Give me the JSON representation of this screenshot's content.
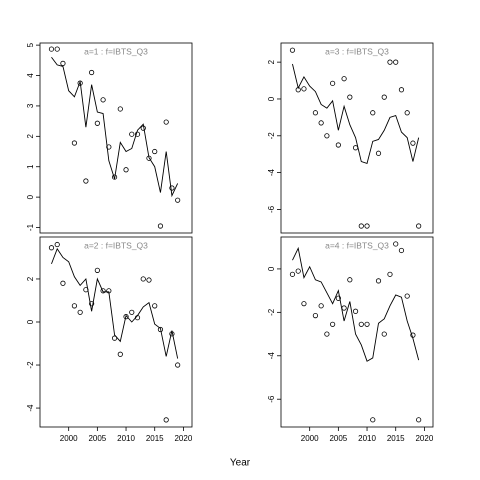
{
  "xlabel": "Year",
  "chart_data": [
    {
      "type": "line",
      "title": "a=1  :  f=IBTS_Q3",
      "x": [
        1997,
        1998,
        1999,
        2000,
        2001,
        2002,
        2003,
        2004,
        2005,
        2006,
        2007,
        2008,
        2009,
        2010,
        2011,
        2012,
        2013,
        2014,
        2015,
        2016,
        2017,
        2018,
        2019
      ],
      "series": [
        {
          "mode": "points",
          "color": "#000000",
          "values": [
            4.87,
            4.87,
            4.4,
            null,
            1.78,
            3.75,
            0.53,
            4.1,
            2.43,
            3.2,
            1.65,
            0.66,
            2.9,
            0.9,
            2.07,
            2.07,
            2.27,
            1.28,
            1.5,
            -0.95,
            2.47,
            0.3,
            -0.1
          ]
        },
        {
          "mode": "lines",
          "color": "#000000",
          "values": [
            4.6,
            4.35,
            4.3,
            3.5,
            3.3,
            3.8,
            2.3,
            3.7,
            2.8,
            2.75,
            1.2,
            0.6,
            1.8,
            1.5,
            1.6,
            2.2,
            2.4,
            1.3,
            1.0,
            0.15,
            1.5,
            0.05,
            0.45
          ]
        }
      ],
      "xlim": [
        1995,
        2021.5
      ],
      "ylim": [
        -1.18,
        5.07
      ],
      "yticks": [
        -1,
        0,
        1,
        2,
        3,
        4,
        5
      ]
    },
    {
      "type": "line",
      "title": "a=2  :  f=IBTS_Q3",
      "x": [
        1997,
        1998,
        1999,
        2000,
        2001,
        2002,
        2003,
        2004,
        2005,
        2006,
        2007,
        2008,
        2009,
        2010,
        2011,
        2012,
        2013,
        2014,
        2015,
        2016,
        2017,
        2018,
        2019
      ],
      "series": [
        {
          "mode": "points",
          "color": "#000000",
          "values": [
            3.45,
            3.6,
            1.8,
            null,
            0.75,
            0.45,
            1.5,
            0.85,
            2.4,
            1.45,
            1.45,
            -0.75,
            -1.5,
            0.25,
            0.45,
            0.2,
            2.0,
            1.95,
            0.75,
            -0.35,
            -4.55,
            -0.55,
            -2.0
          ]
        },
        {
          "mode": "lines",
          "color": "#000000",
          "values": [
            2.7,
            3.4,
            3.0,
            2.8,
            2.1,
            1.7,
            2.0,
            0.5,
            2.0,
            1.4,
            1.4,
            -0.6,
            -0.9,
            0.3,
            0.0,
            0.3,
            0.7,
            0.9,
            -0.1,
            -0.3,
            -1.6,
            -0.4,
            -1.7
          ]
        }
      ],
      "xlim": [
        1995,
        2021.5
      ],
      "xticks": [
        2000,
        2005,
        2010,
        2015,
        2020
      ],
      "ylim": [
        -4.88,
        3.95
      ],
      "yticks": [
        -4,
        -2,
        0,
        2
      ]
    },
    {
      "type": "line",
      "title": "a=3  :  f=IBTS_Q3",
      "x": [
        1997,
        1998,
        1999,
        2000,
        2001,
        2002,
        2003,
        2004,
        2005,
        2006,
        2007,
        2008,
        2009,
        2010,
        2011,
        2012,
        2013,
        2014,
        2015,
        2016,
        2017,
        2018,
        2019
      ],
      "series": [
        {
          "mode": "points",
          "color": "#000000",
          "values": [
            2.65,
            0.5,
            0.55,
            null,
            -0.75,
            -1.3,
            -2.0,
            0.85,
            -2.5,
            1.1,
            0.1,
            -2.65,
            -6.9,
            -6.9,
            -0.75,
            -2.95,
            0.1,
            2.0,
            2.0,
            0.5,
            -0.75,
            -2.4,
            -6.9
          ]
        },
        {
          "mode": "lines",
          "color": "#000000",
          "values": [
            1.9,
            0.6,
            1.2,
            0.7,
            0.4,
            -0.3,
            -0.5,
            -0.1,
            -1.7,
            -0.4,
            -1.4,
            -2.1,
            -3.4,
            -3.5,
            -2.3,
            -2.2,
            -1.7,
            -1.0,
            -0.9,
            -1.8,
            -2.1,
            -3.4,
            -2.1
          ]
        }
      ],
      "xlim": [
        1995,
        2021.5
      ],
      "ylim": [
        -7.28,
        3.04
      ],
      "yticks": [
        -6,
        -4,
        -2,
        0,
        2
      ]
    },
    {
      "type": "line",
      "title": "a=4  :  f=IBTS_Q3",
      "x": [
        1997,
        1998,
        1999,
        2000,
        2001,
        2002,
        2003,
        2004,
        2005,
        2006,
        2007,
        2008,
        2009,
        2010,
        2011,
        2012,
        2013,
        2014,
        2015,
        2016,
        2017,
        2018,
        2019
      ],
      "series": [
        {
          "mode": "points",
          "color": "#000000",
          "values": [
            -0.25,
            -0.1,
            -1.6,
            null,
            -2.15,
            -1.7,
            -3.0,
            -2.55,
            -1.35,
            -1.8,
            -0.5,
            -1.95,
            -2.55,
            -2.55,
            -6.95,
            -0.55,
            -3.0,
            -0.25,
            1.15,
            0.85,
            -1.25,
            -3.05,
            -6.95
          ]
        },
        {
          "mode": "lines",
          "color": "#000000",
          "values": [
            0.4,
            0.95,
            -0.4,
            0.1,
            -0.5,
            -0.6,
            -1.1,
            -1.6,
            -1.0,
            -2.4,
            -1.5,
            -3.0,
            -3.5,
            -4.25,
            -4.1,
            -2.5,
            -2.3,
            -1.7,
            -1.2,
            -1.3,
            -2.4,
            -3.2,
            -4.2
          ]
        }
      ],
      "xlim": [
        1995,
        2021.5
      ],
      "xticks": [
        2000,
        2005,
        2010,
        2015,
        2020
      ],
      "ylim": [
        -7.28,
        1.47
      ],
      "yticks": [
        -6,
        -4,
        -2,
        0
      ]
    }
  ]
}
